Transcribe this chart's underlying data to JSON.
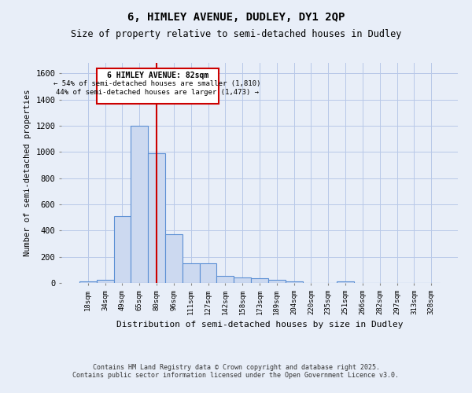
{
  "title": "6, HIMLEY AVENUE, DUDLEY, DY1 2QP",
  "subtitle": "Size of property relative to semi-detached houses in Dudley",
  "xlabel": "Distribution of semi-detached houses by size in Dudley",
  "ylabel": "Number of semi-detached properties",
  "categories": [
    "18sqm",
    "34sqm",
    "49sqm",
    "65sqm",
    "80sqm",
    "96sqm",
    "111sqm",
    "127sqm",
    "142sqm",
    "158sqm",
    "173sqm",
    "189sqm",
    "204sqm",
    "220sqm",
    "235sqm",
    "251sqm",
    "266sqm",
    "282sqm",
    "297sqm",
    "313sqm",
    "328sqm"
  ],
  "values": [
    10,
    25,
    510,
    1200,
    990,
    370,
    148,
    148,
    55,
    45,
    35,
    22,
    10,
    0,
    0,
    10,
    0,
    0,
    0,
    0,
    0
  ],
  "bar_color": "#ccd9f0",
  "bar_edge_color": "#5b8fd4",
  "grid_color": "#b8c8e8",
  "bg_color": "#e8eef8",
  "vline_x": 4.0,
  "vline_color": "#cc0000",
  "annotation_title": "6 HIMLEY AVENUE: 82sqm",
  "annotation_line1": "← 54% of semi-detached houses are smaller (1,810)",
  "annotation_line2": "44% of semi-detached houses are larger (1,473) →",
  "annotation_box_color": "#cc0000",
  "ylim": [
    0,
    1680
  ],
  "yticks": [
    0,
    200,
    400,
    600,
    800,
    1000,
    1200,
    1400,
    1600
  ],
  "footer_line1": "Contains HM Land Registry data © Crown copyright and database right 2025.",
  "footer_line2": "Contains public sector information licensed under the Open Government Licence v3.0."
}
